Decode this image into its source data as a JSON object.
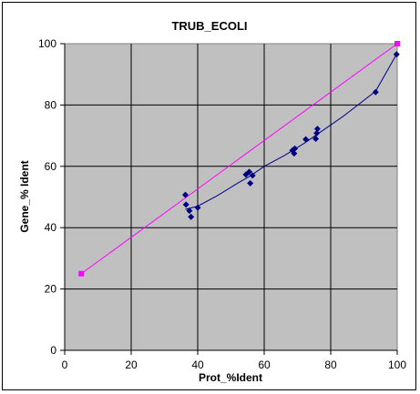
{
  "chart_data": {
    "type": "scatter",
    "title": "TRUB_ECOLI",
    "xlabel": "Prot_%Ident",
    "ylabel": "Gene_% Ident",
    "xlim": [
      0,
      100
    ],
    "ylim": [
      0,
      100
    ],
    "x_ticks": [
      "0",
      "20",
      "40",
      "60",
      "80",
      "100"
    ],
    "y_ticks": [
      "0",
      "20",
      "40",
      "60",
      "80",
      "100"
    ],
    "grid": true,
    "legend": "none",
    "colors": {
      "plot_background": "#c0c0c0",
      "gridline": "#000000",
      "data_series": "#000080",
      "reference_line": "#ff00ff"
    },
    "series": [
      {
        "style": "markers-with-trend",
        "marker": "diamond",
        "points": [
          {
            "x": 36.3,
            "y": 50.7
          },
          {
            "x": 36.5,
            "y": 47.5
          },
          {
            "x": 37.5,
            "y": 45.5
          },
          {
            "x": 38.0,
            "y": 43.5
          },
          {
            "x": 40.0,
            "y": 46.5
          },
          {
            "x": 54.5,
            "y": 57.3
          },
          {
            "x": 55.5,
            "y": 58.2
          },
          {
            "x": 55.8,
            "y": 54.5
          },
          {
            "x": 56.5,
            "y": 57.0
          },
          {
            "x": 68.5,
            "y": 65.2
          },
          {
            "x": 69.0,
            "y": 64.2
          },
          {
            "x": 69.2,
            "y": 65.8
          },
          {
            "x": 72.5,
            "y": 68.8
          },
          {
            "x": 75.5,
            "y": 69.0
          },
          {
            "x": 75.8,
            "y": 70.8
          },
          {
            "x": 76.0,
            "y": 72.2
          },
          {
            "x": 93.5,
            "y": 84.2
          },
          {
            "x": 99.8,
            "y": 96.5
          }
        ],
        "trend": [
          {
            "x": 36.3,
            "y": 46.0
          },
          {
            "x": 40.0,
            "y": 47.0
          },
          {
            "x": 46.0,
            "y": 50.5
          },
          {
            "x": 52.0,
            "y": 54.5
          },
          {
            "x": 56.0,
            "y": 57.0
          },
          {
            "x": 60.0,
            "y": 60.0
          },
          {
            "x": 66.0,
            "y": 63.5
          },
          {
            "x": 72.0,
            "y": 67.5
          },
          {
            "x": 76.0,
            "y": 70.5
          },
          {
            "x": 84.0,
            "y": 76.5
          },
          {
            "x": 93.5,
            "y": 84.5
          },
          {
            "x": 99.8,
            "y": 96.5
          }
        ]
      },
      {
        "style": "line-with-markers",
        "marker": "square",
        "points": [
          {
            "x": 5,
            "y": 25
          },
          {
            "x": 100,
            "y": 100
          }
        ]
      }
    ]
  }
}
